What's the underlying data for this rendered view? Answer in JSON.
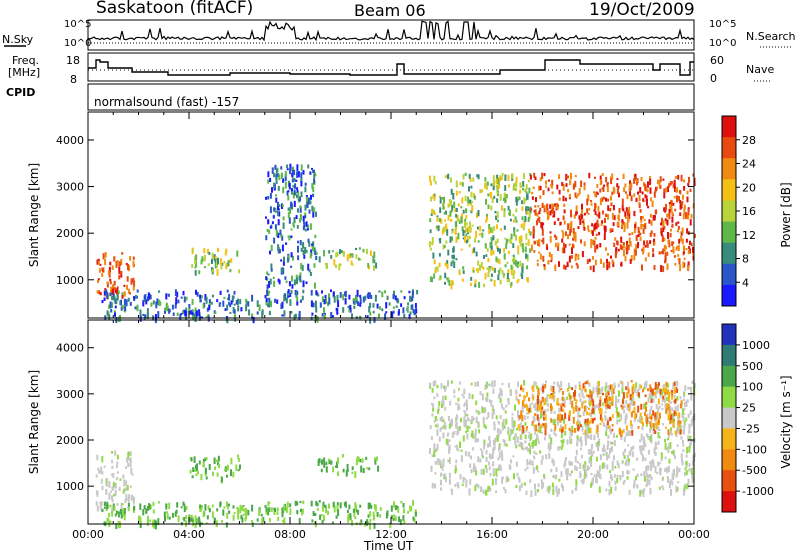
{
  "header": {
    "station": "Saskatoon (fitACF)",
    "beam": "Beam 06",
    "date": "19/Oct/2009"
  },
  "top_panels": {
    "nsky_label": "N.Sky",
    "nsky_ticks": [
      "10^5",
      "10^0"
    ],
    "nsearch_label": "N.Search",
    "nsearch_ticks": [
      "10^5",
      "10^0"
    ],
    "freq_label": "Freq.",
    "freq_unit": "[MHz]",
    "freq_ticks": [
      "18",
      "8"
    ],
    "nave_label": "Nave",
    "nave_ticks": [
      "60",
      "0"
    ],
    "cpid_label": "CPID",
    "cpid_value": "normalsound (fast) -157"
  },
  "chart_data": [
    {
      "type": "heatmap",
      "quantity": "Power",
      "ylabel": "Slant Range [km]",
      "ylim": [
        180,
        4600
      ],
      "yticks": [
        "1000",
        "2000",
        "3000",
        "4000"
      ],
      "colorbar": {
        "label": "Power [dB]",
        "ticks": [
          "4",
          "8",
          "12",
          "16",
          "20",
          "24",
          "28"
        ],
        "colors": [
          "#1a1aff",
          "#2a55c8",
          "#3a8c7a",
          "#5fb84a",
          "#b8d43a",
          "#f5c016",
          "#f08a10",
          "#e84a10",
          "#dd0f0f"
        ]
      },
      "echo_regions": [
        {
          "t": [
            0.3,
            1.8
          ],
          "r": [
            700,
            1600
          ],
          "level": "high"
        },
        {
          "t": [
            4.0,
            6.0
          ],
          "r": [
            1200,
            1700
          ],
          "level": "mid"
        },
        {
          "t": [
            7.0,
            9.0
          ],
          "r": [
            900,
            3500
          ],
          "level": "low"
        },
        {
          "t": [
            9.0,
            11.5
          ],
          "r": [
            1300,
            1700
          ],
          "level": "mid"
        },
        {
          "t": [
            0.5,
            13.0
          ],
          "r": [
            200,
            800
          ],
          "level": "low"
        },
        {
          "t": [
            13.5,
            17.5
          ],
          "r": [
            900,
            3300
          ],
          "level": "mid"
        },
        {
          "t": [
            17.5,
            24.0
          ],
          "r": [
            1300,
            3300
          ],
          "level": "high"
        }
      ]
    },
    {
      "type": "heatmap",
      "quantity": "Velocity",
      "ylabel": "Slant Range [km]",
      "ylim": [
        180,
        4600
      ],
      "yticks": [
        "1000",
        "2000",
        "3000",
        "4000"
      ],
      "colorbar": {
        "label": "Velocity [m s⁻¹]",
        "ticks": [
          "1000",
          "500",
          "100",
          "25",
          "-25",
          "-100",
          "-500",
          "-1000"
        ],
        "colors": [
          "#2233bb",
          "#2f7a72",
          "#4aa84a",
          "#8fdb45",
          "#c8c8c8",
          "#f5b51a",
          "#f08a10",
          "#e85010",
          "#dd1010"
        ]
      },
      "echo_regions": [
        {
          "t": [
            0.3,
            1.8
          ],
          "r": [
            500,
            1800
          ],
          "level": "ground"
        },
        {
          "t": [
            4.0,
            6.0
          ],
          "r": [
            1200,
            1700
          ],
          "level": "positive"
        },
        {
          "t": [
            9.0,
            11.5
          ],
          "r": [
            1300,
            1700
          ],
          "level": "positive"
        },
        {
          "t": [
            0.5,
            13.0
          ],
          "r": [
            200,
            700
          ],
          "level": "positive"
        },
        {
          "t": [
            13.5,
            24.0
          ],
          "r": [
            900,
            3300
          ],
          "level": "ground"
        },
        {
          "t": [
            17.0,
            23.5
          ],
          "r": [
            2200,
            3300
          ],
          "level": "negative"
        }
      ]
    }
  ],
  "time_axis": {
    "label": "Time UT",
    "ticks": [
      "00:00",
      "04:00",
      "08:00",
      "12:00",
      "16:00",
      "20:00",
      "00:00"
    ]
  }
}
